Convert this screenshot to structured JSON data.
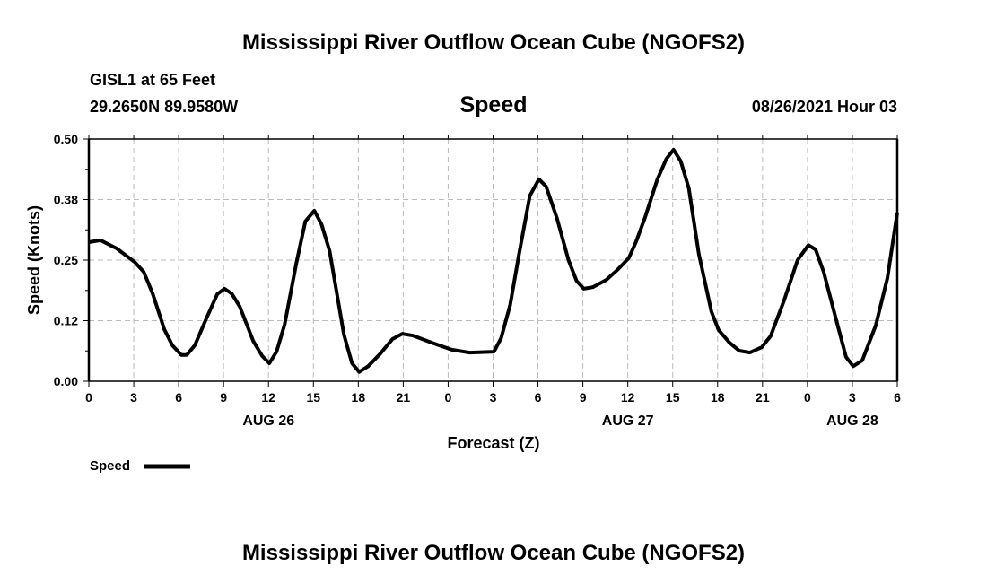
{
  "header": {
    "title": "Mississippi River Outflow Ocean Cube (NGOFS2)",
    "station": "GISL1 at 65 Feet",
    "coords": "29.2650N  89.9580W",
    "variable": "Speed",
    "datetime": "08/26/2021 Hour 03"
  },
  "footer": {
    "title": "Mississippi River Outflow Ocean Cube (NGOFS2)"
  },
  "chart_data": {
    "type": "line",
    "title": "Speed",
    "xlabel": "Forecast (Z)",
    "ylabel": "Speed (Knots)",
    "xlim": [
      0,
      54
    ],
    "ylim": [
      0,
      0.5
    ],
    "grid": true,
    "legend": {
      "position": "bottom-left",
      "entries": [
        "Speed"
      ]
    },
    "y_ticks": [
      {
        "value": 0,
        "label": "0.00"
      },
      {
        "value": 0.125,
        "label": "0.12"
      },
      {
        "value": 0.25,
        "label": "0.25"
      },
      {
        "value": 0.375,
        "label": "0.38"
      },
      {
        "value": 0.5,
        "label": "0.50"
      }
    ],
    "x_ticks": [
      {
        "value": 0,
        "label": "0"
      },
      {
        "value": 3,
        "label": "3"
      },
      {
        "value": 6,
        "label": "6"
      },
      {
        "value": 9,
        "label": "9"
      },
      {
        "value": 12,
        "label": "12"
      },
      {
        "value": 15,
        "label": "15"
      },
      {
        "value": 18,
        "label": "18"
      },
      {
        "value": 21,
        "label": "21"
      },
      {
        "value": 24,
        "label": "0"
      },
      {
        "value": 27,
        "label": "3"
      },
      {
        "value": 30,
        "label": "6"
      },
      {
        "value": 33,
        "label": "9"
      },
      {
        "value": 36,
        "label": "12"
      },
      {
        "value": 39,
        "label": "15"
      },
      {
        "value": 42,
        "label": "18"
      },
      {
        "value": 45,
        "label": "21"
      },
      {
        "value": 48,
        "label": "0"
      },
      {
        "value": 51,
        "label": "3"
      },
      {
        "value": 54,
        "label": "6"
      }
    ],
    "date_labels": [
      {
        "value": 12,
        "label": "AUG 26"
      },
      {
        "value": 36,
        "label": "AUG 27"
      },
      {
        "value": 51,
        "label": "AUG 28"
      }
    ],
    "series": [
      {
        "name": "Speed",
        "color": "#000000",
        "points": [
          [
            0,
            0.287
          ],
          [
            0.78,
            0.291
          ],
          [
            1.86,
            0.274
          ],
          [
            3.06,
            0.246
          ],
          [
            3.66,
            0.226
          ],
          [
            4.26,
            0.181
          ],
          [
            5.04,
            0.107
          ],
          [
            5.58,
            0.074
          ],
          [
            6.18,
            0.054
          ],
          [
            6.54,
            0.054
          ],
          [
            7.08,
            0.074
          ],
          [
            7.86,
            0.13
          ],
          [
            8.58,
            0.18
          ],
          [
            9.06,
            0.191
          ],
          [
            9.54,
            0.181
          ],
          [
            10.08,
            0.154
          ],
          [
            10.98,
            0.083
          ],
          [
            11.58,
            0.052
          ],
          [
            12.06,
            0.037
          ],
          [
            12.54,
            0.061
          ],
          [
            13.08,
            0.117
          ],
          [
            13.86,
            0.244
          ],
          [
            14.46,
            0.33
          ],
          [
            15.06,
            0.352
          ],
          [
            15.54,
            0.324
          ],
          [
            16.08,
            0.269
          ],
          [
            17.04,
            0.096
          ],
          [
            17.58,
            0.037
          ],
          [
            18.06,
            0.019
          ],
          [
            18.66,
            0.031
          ],
          [
            19.44,
            0.056
          ],
          [
            20.28,
            0.087
          ],
          [
            20.94,
            0.098
          ],
          [
            21.66,
            0.094
          ],
          [
            23.04,
            0.078
          ],
          [
            24.24,
            0.065
          ],
          [
            25.44,
            0.059
          ],
          [
            27.06,
            0.061
          ],
          [
            27.54,
            0.089
          ],
          [
            28.14,
            0.157
          ],
          [
            28.74,
            0.263
          ],
          [
            29.46,
            0.383
          ],
          [
            30.06,
            0.417
          ],
          [
            30.54,
            0.402
          ],
          [
            31.26,
            0.337
          ],
          [
            32.04,
            0.25
          ],
          [
            32.58,
            0.207
          ],
          [
            33.06,
            0.191
          ],
          [
            33.66,
            0.194
          ],
          [
            34.56,
            0.209
          ],
          [
            35.34,
            0.231
          ],
          [
            36.06,
            0.254
          ],
          [
            36.54,
            0.287
          ],
          [
            37.14,
            0.337
          ],
          [
            37.98,
            0.417
          ],
          [
            38.58,
            0.459
          ],
          [
            39.06,
            0.478
          ],
          [
            39.54,
            0.454
          ],
          [
            40.08,
            0.398
          ],
          [
            40.74,
            0.263
          ],
          [
            41.58,
            0.144
          ],
          [
            42.06,
            0.106
          ],
          [
            42.78,
            0.08
          ],
          [
            43.44,
            0.063
          ],
          [
            44.16,
            0.059
          ],
          [
            44.94,
            0.07
          ],
          [
            45.54,
            0.093
          ],
          [
            46.44,
            0.167
          ],
          [
            47.34,
            0.25
          ],
          [
            48.06,
            0.281
          ],
          [
            48.54,
            0.272
          ],
          [
            49.08,
            0.226
          ],
          [
            49.98,
            0.12
          ],
          [
            50.58,
            0.05
          ],
          [
            51.06,
            0.031
          ],
          [
            51.66,
            0.043
          ],
          [
            52.56,
            0.115
          ],
          [
            53.34,
            0.213
          ],
          [
            54,
            0.348
          ]
        ]
      }
    ]
  }
}
